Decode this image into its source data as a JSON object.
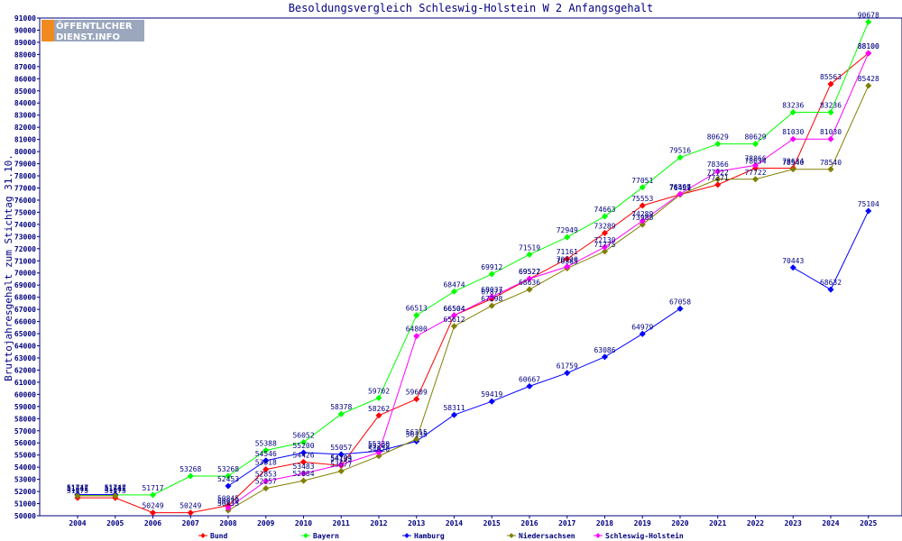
{
  "logo": {
    "line1": "ÖFFENTLICHER",
    "line2": "DIENST.INFO"
  },
  "chart_data": {
    "type": "line",
    "title": "Besoldungsvergleich Schleswig-Holstein W 2 Anfangsgehalt",
    "ylabel": "Bruttojahresgehalt zum Stichtag 31.10.",
    "xlabel": "",
    "categories": [
      "2004",
      "2005",
      "2006",
      "2007",
      "2008",
      "2009",
      "2010",
      "2011",
      "2012",
      "2013",
      "2014",
      "2015",
      "2016",
      "2017",
      "2018",
      "2019",
      "2020",
      "2021",
      "2022",
      "2023",
      "2024",
      "2025"
    ],
    "ylim": [
      50000,
      91000
    ],
    "ytick_step": 1000,
    "grid": false,
    "legend_position": "bottom",
    "series": [
      {
        "name": "Bund",
        "color": "#ff0000",
        "values": [
          51475,
          51475,
          50249,
          50249,
          50845,
          53818,
          54426,
          54133,
          58262,
          59609,
          66504,
          67872,
          69522,
          71161,
          73289,
          75553,
          76459,
          77271,
          78634,
          78634,
          85563,
          88100
        ]
      },
      {
        "name": "Bayern",
        "color": "#00ff00",
        "values": [
          51717,
          51717,
          51717,
          53268,
          53268,
          55388,
          56052,
          58378,
          59702,
          66513,
          68474,
          69912,
          71519,
          72949,
          74663,
          77051,
          79516,
          80629,
          80629,
          83236,
          83236,
          90678
        ]
      },
      {
        "name": "Hamburg",
        "color": "#0000ff",
        "values": [
          51747,
          51747,
          null,
          null,
          52453,
          54546,
          55200,
          55057,
          55330,
          56135,
          58311,
          59419,
          60667,
          61759,
          63086,
          64979,
          67058,
          null,
          null,
          70443,
          68632,
          75104
        ]
      },
      {
        "name": "Niedersachsen",
        "color": "#808000",
        "values": [
          51645,
          51645,
          null,
          null,
          50435,
          52257,
          52884,
          53677,
          54920,
          56315,
          65612,
          67298,
          68636,
          70385,
          71775,
          73988,
          76451,
          77722,
          77722,
          78540,
          78540,
          85428
        ]
      },
      {
        "name": "Schleswig-Holstein",
        "color": "#ff00ff",
        "values": [
          null,
          null,
          null,
          null,
          50639,
          52853,
          53483,
          54204,
          55209,
          64800,
          66504,
          68037,
          69527,
          70520,
          72130,
          74289,
          76507,
          78366,
          78866,
          81030,
          81030,
          88100
        ]
      }
    ]
  }
}
